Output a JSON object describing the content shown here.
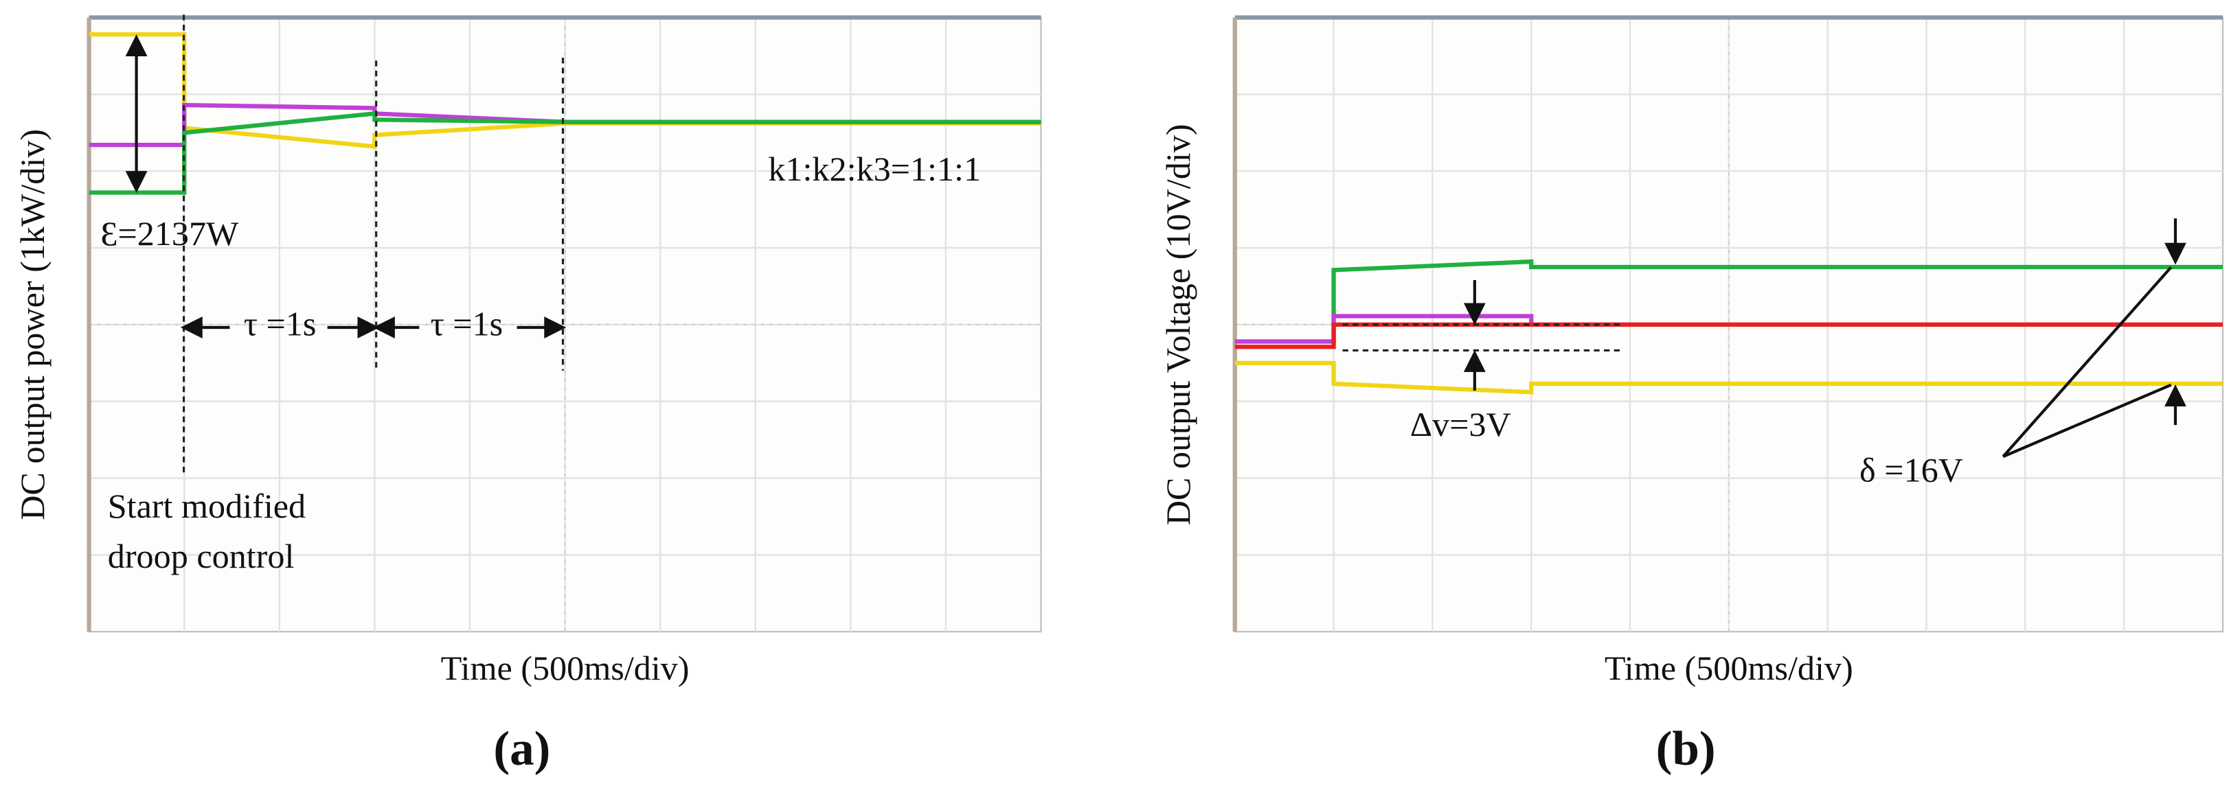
{
  "chart_data": [
    {
      "type": "line",
      "ylabel": "DC output power (1kW/div)",
      "xlabel": "Time (500ms/div)",
      "caption": "(a)",
      "annotations": [
        "Ɛ=2137W",
        "τ =1s",
        "τ =1s",
        "Start modified",
        "droop control",
        "k1:k2:k3=1:1:1"
      ],
      "x": [
        0,
        1,
        1,
        3,
        3,
        5,
        5,
        10
      ],
      "series": [
        {
          "color": "#f2d417",
          "values": [
            3.78,
            3.78,
            2.56,
            2.32,
            2.47,
            2.62,
            2.62,
            2.62
          ]
        },
        {
          "color": "#c040d8",
          "values": [
            2.34,
            2.34,
            2.86,
            2.82,
            2.75,
            2.64,
            2.64,
            2.64
          ]
        },
        {
          "color": "#20b040",
          "values": [
            1.72,
            1.72,
            2.5,
            2.75,
            2.67,
            2.64,
            2.64,
            2.64
          ]
        }
      ],
      "xlim": [
        0,
        10
      ],
      "ylim": [
        -4,
        4
      ],
      "grid": true
    },
    {
      "type": "line",
      "ylabel": "DC output  Voltage  (10V/div)",
      "xlabel": "Time (500ms/div)",
      "caption": "(b)",
      "annotations": [
        "Δv=3V",
        "δ =16V"
      ],
      "x": [
        0,
        1,
        1,
        3,
        3,
        10
      ],
      "series": [
        {
          "color": "#20b040",
          "values": [
            -0.22,
            -0.22,
            0.71,
            0.82,
            0.75,
            0.75
          ]
        },
        {
          "color": "#c040d8",
          "values": [
            -0.22,
            -0.22,
            0.11,
            0.11,
            0,
            0
          ]
        },
        {
          "color": "#e82020",
          "values": [
            -0.29,
            -0.29,
            0,
            0,
            0,
            0
          ]
        },
        {
          "color": "#f2d417",
          "values": [
            -0.5,
            -0.5,
            -0.77,
            -0.88,
            -0.77,
            -0.77
          ]
        }
      ],
      "xlim": [
        0,
        10
      ],
      "ylim": [
        -4,
        4
      ],
      "grid": true
    }
  ]
}
